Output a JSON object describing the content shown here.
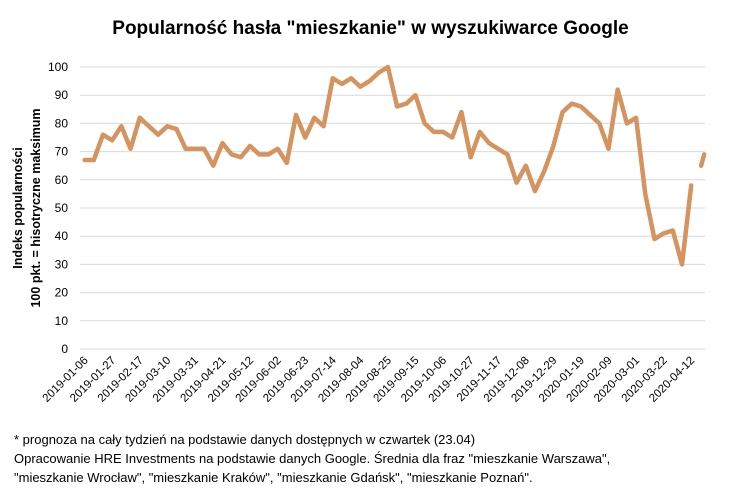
{
  "title": "Popularność hasła \"mieszkanie\" w wyszukiwarce Google",
  "chart_data": {
    "type": "line",
    "title": "Popularność hasła \"mieszkanie\" w wyszukiwarce Google",
    "ylabel_line1": "Indeks popularności",
    "ylabel_line2": "100 pkt. = hisotryczne maksimum",
    "ylim": [
      0,
      100
    ],
    "yticks": [
      0,
      10,
      20,
      30,
      40,
      50,
      60,
      70,
      80,
      90,
      100
    ],
    "grid": true,
    "line_color": "#d4935f",
    "x": [
      "2019-01-06",
      "2019-01-13",
      "2019-01-20",
      "2019-01-27",
      "2019-02-03",
      "2019-02-10",
      "2019-02-17",
      "2019-02-24",
      "2019-03-03",
      "2019-03-10",
      "2019-03-17",
      "2019-03-24",
      "2019-03-31",
      "2019-04-07",
      "2019-04-14",
      "2019-04-21",
      "2019-04-28",
      "2019-05-05",
      "2019-05-12",
      "2019-05-19",
      "2019-05-26",
      "2019-06-02",
      "2019-06-09",
      "2019-06-16",
      "2019-06-23",
      "2019-06-30",
      "2019-07-07",
      "2019-07-14",
      "2019-07-21",
      "2019-07-28",
      "2019-08-04",
      "2019-08-11",
      "2019-08-18",
      "2019-08-25",
      "2019-09-01",
      "2019-09-08",
      "2019-09-15",
      "2019-09-22",
      "2019-09-29",
      "2019-10-06",
      "2019-10-13",
      "2019-10-20",
      "2019-10-27",
      "2019-11-03",
      "2019-11-10",
      "2019-11-17",
      "2019-11-24",
      "2019-12-01",
      "2019-12-08",
      "2019-12-15",
      "2019-12-22",
      "2019-12-29",
      "2020-01-05",
      "2020-01-12",
      "2020-01-19",
      "2020-01-26",
      "2020-02-02",
      "2020-02-09",
      "2020-02-16",
      "2020-02-23",
      "2020-03-01",
      "2020-03-08",
      "2020-03-15",
      "2020-03-22",
      "2020-03-29",
      "2020-04-05",
      "2020-04-12",
      "2020-04-19"
    ],
    "xtick_labels": [
      "2019-01-06",
      "2019-01-27",
      "2019-02-17",
      "2019-03-10",
      "2019-03-31",
      "2019-04-21",
      "2019-05-12",
      "2019-06-02",
      "2019-06-23",
      "2019-07-14",
      "2019-08-04",
      "2019-08-25",
      "2019-09-15",
      "2019-10-06",
      "2019-10-27",
      "2019-11-17",
      "2019-12-08",
      "2019-12-29",
      "2020-01-19",
      "2020-02-09",
      "2020-03-01",
      "2020-03-22",
      "2020-04-12"
    ],
    "series": [
      {
        "values": [
          67,
          67,
          76,
          74,
          79,
          71,
          82,
          79,
          76,
          79,
          78,
          71,
          71,
          71,
          65,
          73,
          69,
          68,
          72,
          69,
          69,
          71,
          66,
          83,
          75,
          82,
          79,
          96,
          94,
          96,
          93,
          95,
          98,
          100,
          86,
          87,
          90,
          80,
          77,
          77,
          75,
          84,
          68,
          77,
          73,
          71,
          69,
          59,
          65,
          56,
          63,
          72,
          84,
          87,
          86,
          83,
          80,
          71,
          92,
          80,
          82,
          55,
          39,
          41,
          42,
          30,
          58,
          null
        ],
        "forecast_value": [
          65,
          69
        ]
      }
    ]
  },
  "footnotes": {
    "line1": "* prognoza na cały tydzień na podstawie danych dostępnych w czwartek (23.04)",
    "line2": "Opracowanie HRE Investments na podstawie danych Google. Średnia dla fraz \"mieszkanie Warszawa\",",
    "line3": "\"mieszkanie Wrocław\", \"mieszkanie Kraków\", \"mieszkanie Gdańsk\", \"mieszkanie Poznań\"."
  }
}
